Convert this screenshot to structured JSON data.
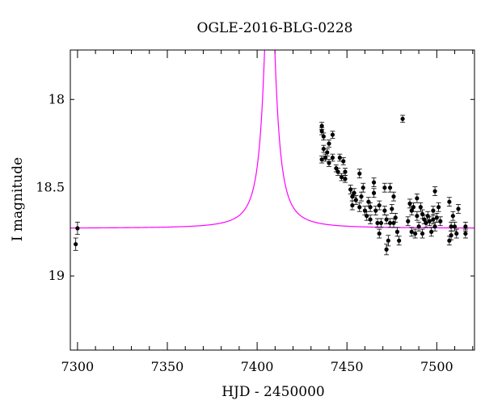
{
  "chart_data": {
    "type": "scatter",
    "title": "OGLE-2016-BLG-0228",
    "xlabel": "HJD - 2450000",
    "ylabel": "I magnitude",
    "xlim": [
      7296,
      7521
    ],
    "ylim": [
      19.42,
      17.72
    ],
    "y_inverted": true,
    "grid": false,
    "x_ticks": [
      7300,
      7350,
      7400,
      7450,
      7500
    ],
    "y_ticks": [
      18,
      18.5,
      19
    ],
    "colors": {
      "data": "#000000",
      "model": "#ff00ff"
    },
    "model_curve": {
      "name": "",
      "peak_t": 7407,
      "baseline": 18.73,
      "peak_mag": 17.0,
      "t_scale": 25
    },
    "series": [
      {
        "name": "",
        "points": [
          {
            "x": 7300,
            "y": 18.73,
            "err": 0.035
          },
          {
            "x": 7299,
            "y": 18.82,
            "err": 0.035
          },
          {
            "x": 7436,
            "y": 18.15,
            "err": 0.02
          },
          {
            "x": 7436,
            "y": 18.18,
            "err": 0.02
          },
          {
            "x": 7437,
            "y": 18.21,
            "err": 0.02
          },
          {
            "x": 7436,
            "y": 18.34,
            "err": 0.02
          },
          {
            "x": 7437,
            "y": 18.28,
            "err": 0.02
          },
          {
            "x": 7438,
            "y": 18.33,
            "err": 0.02
          },
          {
            "x": 7439,
            "y": 18.3,
            "err": 0.02
          },
          {
            "x": 7440,
            "y": 18.36,
            "err": 0.02
          },
          {
            "x": 7440,
            "y": 18.25,
            "err": 0.02
          },
          {
            "x": 7442,
            "y": 18.2,
            "err": 0.02
          },
          {
            "x": 7442,
            "y": 18.33,
            "err": 0.02
          },
          {
            "x": 7444,
            "y": 18.39,
            "err": 0.02
          },
          {
            "x": 7445,
            "y": 18.41,
            "err": 0.02
          },
          {
            "x": 7446,
            "y": 18.33,
            "err": 0.02
          },
          {
            "x": 7447,
            "y": 18.44,
            "err": 0.02
          },
          {
            "x": 7448,
            "y": 18.35,
            "err": 0.02
          },
          {
            "x": 7449,
            "y": 18.41,
            "err": 0.02
          },
          {
            "x": 7449,
            "y": 18.45,
            "err": 0.02
          },
          {
            "x": 7452,
            "y": 18.51,
            "err": 0.025
          },
          {
            "x": 7453,
            "y": 18.55,
            "err": 0.025
          },
          {
            "x": 7453,
            "y": 18.6,
            "err": 0.025
          },
          {
            "x": 7454,
            "y": 18.53,
            "err": 0.025
          },
          {
            "x": 7455,
            "y": 18.57,
            "err": 0.025
          },
          {
            "x": 7457,
            "y": 18.42,
            "err": 0.025
          },
          {
            "x": 7457,
            "y": 18.61,
            "err": 0.025
          },
          {
            "x": 7458,
            "y": 18.55,
            "err": 0.025
          },
          {
            "x": 7459,
            "y": 18.5,
            "err": 0.025
          },
          {
            "x": 7460,
            "y": 18.63,
            "err": 0.025
          },
          {
            "x": 7461,
            "y": 18.66,
            "err": 0.025
          },
          {
            "x": 7462,
            "y": 18.58,
            "err": 0.025
          },
          {
            "x": 7463,
            "y": 18.61,
            "err": 0.025
          },
          {
            "x": 7463,
            "y": 18.68,
            "err": 0.025
          },
          {
            "x": 7465,
            "y": 18.53,
            "err": 0.025
          },
          {
            "x": 7465,
            "y": 18.47,
            "err": 0.025
          },
          {
            "x": 7466,
            "y": 18.63,
            "err": 0.025
          },
          {
            "x": 7467,
            "y": 18.7,
            "err": 0.025
          },
          {
            "x": 7468,
            "y": 18.6,
            "err": 0.025
          },
          {
            "x": 7468,
            "y": 18.76,
            "err": 0.025
          },
          {
            "x": 7469,
            "y": 18.7,
            "err": 0.025
          },
          {
            "x": 7471,
            "y": 18.5,
            "err": 0.025
          },
          {
            "x": 7471,
            "y": 18.63,
            "err": 0.025
          },
          {
            "x": 7472,
            "y": 18.85,
            "err": 0.03
          },
          {
            "x": 7472,
            "y": 18.68,
            "err": 0.025
          },
          {
            "x": 7473,
            "y": 18.8,
            "err": 0.03
          },
          {
            "x": 7474,
            "y": 18.7,
            "err": 0.025
          },
          {
            "x": 7474,
            "y": 18.5,
            "err": 0.025
          },
          {
            "x": 7475,
            "y": 18.62,
            "err": 0.025
          },
          {
            "x": 7476,
            "y": 18.7,
            "err": 0.025
          },
          {
            "x": 7476,
            "y": 18.55,
            "err": 0.025
          },
          {
            "x": 7477,
            "y": 18.67,
            "err": 0.025
          },
          {
            "x": 7478,
            "y": 18.75,
            "err": 0.025
          },
          {
            "x": 7479,
            "y": 18.8,
            "err": 0.025
          },
          {
            "x": 7481,
            "y": 18.11,
            "err": 0.02
          },
          {
            "x": 7484,
            "y": 18.69,
            "err": 0.025
          },
          {
            "x": 7485,
            "y": 18.59,
            "err": 0.025
          },
          {
            "x": 7486,
            "y": 18.75,
            "err": 0.025
          },
          {
            "x": 7486,
            "y": 18.63,
            "err": 0.025
          },
          {
            "x": 7487,
            "y": 18.61,
            "err": 0.025
          },
          {
            "x": 7488,
            "y": 18.76,
            "err": 0.025
          },
          {
            "x": 7489,
            "y": 18.66,
            "err": 0.025
          },
          {
            "x": 7489,
            "y": 18.56,
            "err": 0.025
          },
          {
            "x": 7490,
            "y": 18.72,
            "err": 0.025
          },
          {
            "x": 7491,
            "y": 18.61,
            "err": 0.025
          },
          {
            "x": 7492,
            "y": 18.65,
            "err": 0.025
          },
          {
            "x": 7492,
            "y": 18.76,
            "err": 0.025
          },
          {
            "x": 7493,
            "y": 18.68,
            "err": 0.025
          },
          {
            "x": 7494,
            "y": 18.7,
            "err": 0.025
          },
          {
            "x": 7495,
            "y": 18.66,
            "err": 0.025
          },
          {
            "x": 7496,
            "y": 18.69,
            "err": 0.025
          },
          {
            "x": 7497,
            "y": 18.75,
            "err": 0.025
          },
          {
            "x": 7498,
            "y": 18.68,
            "err": 0.025
          },
          {
            "x": 7498,
            "y": 18.63,
            "err": 0.025
          },
          {
            "x": 7499,
            "y": 18.52,
            "err": 0.025
          },
          {
            "x": 7499,
            "y": 18.72,
            "err": 0.025
          },
          {
            "x": 7500,
            "y": 18.67,
            "err": 0.025
          },
          {
            "x": 7501,
            "y": 18.61,
            "err": 0.025
          },
          {
            "x": 7502,
            "y": 18.69,
            "err": 0.025
          },
          {
            "x": 7507,
            "y": 18.58,
            "err": 0.025
          },
          {
            "x": 7507,
            "y": 18.8,
            "err": 0.025
          },
          {
            "x": 7508,
            "y": 18.72,
            "err": 0.025
          },
          {
            "x": 7508,
            "y": 18.77,
            "err": 0.025
          },
          {
            "x": 7509,
            "y": 18.66,
            "err": 0.025
          },
          {
            "x": 7510,
            "y": 18.72,
            "err": 0.025
          },
          {
            "x": 7511,
            "y": 18.76,
            "err": 0.025
          },
          {
            "x": 7512,
            "y": 18.62,
            "err": 0.025
          },
          {
            "x": 7516,
            "y": 18.72,
            "err": 0.025
          },
          {
            "x": 7516,
            "y": 18.76,
            "err": 0.025
          }
        ]
      }
    ]
  }
}
